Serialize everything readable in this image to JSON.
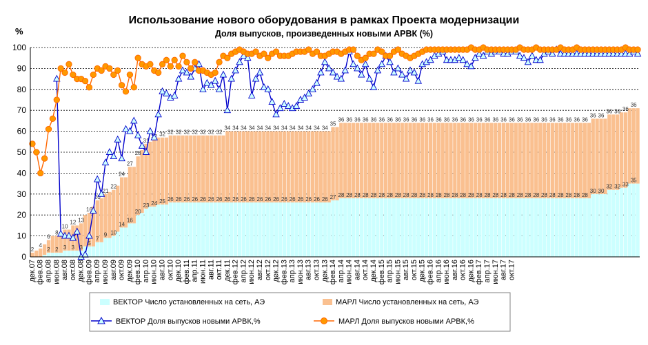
{
  "chart_data": {
    "type": "bar",
    "title": "Использование нового оборудования в рамках Проекта модернизации",
    "subtitle": "Доля выпусков, произведенных новыми АРВК (%)",
    "ylabel": "%",
    "xlabel": "",
    "ylim": [
      0,
      100
    ],
    "yticks": [
      "0",
      "10",
      "20",
      "30",
      "40",
      "50",
      "60",
      "70",
      "80",
      "90",
      "100"
    ],
    "grid": true,
    "legend_position": "bottom",
    "x_start": "2007-12",
    "x_end": "2017-12",
    "x_tick_labels": [
      "дек.07",
      "фев.08",
      "апр.08",
      "июн.08",
      "авг.08",
      "окт.08",
      "дек.08",
      "фев.09",
      "апр.09",
      "июн.09",
      "авг.09",
      "окт.09",
      "дек.09",
      "фев.10",
      "апр.10",
      "июн.10",
      "авг.10",
      "окт.10",
      "дек.10",
      "фев.11",
      "апр.11",
      "июн.11",
      "авг.11",
      "окт.11",
      "дек.11",
      "фев.12",
      "апр.12",
      "июн.12",
      "авг.12",
      "окт.12",
      "дек.12",
      "фев.13",
      "апр.13",
      "июн.13",
      "авг.13",
      "окт.13",
      "дек.13",
      "фев.14",
      "апр.14",
      "июн.14",
      "авг.14",
      "окт.14",
      "дек.14",
      "фев.15",
      "апр.15",
      "июн.15",
      "авг.15",
      "окт.15",
      "дек.15",
      "фев.16",
      "апр.16",
      "июн.16",
      "авг.16",
      "окт.16",
      "дек.16",
      "фев.17",
      "апр.17",
      "июн.17",
      "авг.17",
      "окт.17"
    ],
    "series": [
      {
        "name": "ВЕКТОР Число установленных на сеть, АЭ",
        "kind": "bar",
        "color": "#ccffff",
        "values": [
          0,
          0,
          0,
          1,
          2,
          2,
          2,
          2,
          3,
          3,
          3,
          3,
          3,
          5,
          5,
          5,
          7,
          7,
          9,
          9,
          10,
          12,
          14,
          14,
          16,
          16,
          20,
          21,
          23,
          24,
          24,
          25,
          25,
          25,
          26,
          26,
          26,
          26,
          26,
          26,
          26,
          26,
          26,
          26,
          26,
          26,
          26,
          26,
          26,
          26,
          26,
          26,
          26,
          26,
          26,
          26,
          26,
          26,
          26,
          26,
          26,
          26,
          26,
          26,
          26,
          26,
          26,
          26,
          26,
          26,
          26,
          26,
          26,
          26,
          27,
          27,
          28,
          28,
          28,
          28,
          28,
          28,
          28,
          28,
          28,
          28,
          28,
          28,
          28,
          28,
          28,
          28,
          28,
          28,
          28,
          28,
          28,
          28,
          28,
          28,
          28,
          28,
          28,
          28,
          28,
          28,
          28,
          28,
          28,
          28,
          28,
          28,
          28,
          28,
          28,
          28,
          28,
          28,
          28,
          28,
          28,
          28,
          28,
          28,
          28,
          28,
          28,
          28,
          28,
          28,
          28,
          28,
          28,
          28,
          28,
          28,
          28,
          28,
          30,
          30,
          30,
          30,
          32,
          32,
          32,
          33,
          33,
          35,
          35,
          35
        ]
      },
      {
        "name": "МАРЛ Число установленных на сеть, АЭ",
        "kind": "bar",
        "color": "#fac090",
        "values": [
          2,
          3,
          4,
          5,
          6,
          8,
          8,
          8,
          10,
          10,
          12,
          12,
          13,
          15,
          16,
          19,
          20,
          21,
          21,
          22,
          22,
          22,
          24,
          24,
          27,
          27,
          28,
          30,
          31,
          31,
          32,
          32,
          32,
          32,
          32,
          32,
          32,
          32,
          32,
          32,
          32,
          32,
          32,
          32,
          32,
          32,
          32,
          32,
          34,
          34,
          34,
          34,
          34,
          34,
          34,
          34,
          34,
          34,
          34,
          34,
          34,
          34,
          34,
          34,
          34,
          34,
          34,
          34,
          34,
          34,
          34,
          34,
          34,
          34,
          35,
          35,
          36,
          36,
          36,
          36,
          36,
          36,
          36,
          36,
          36,
          36,
          36,
          36,
          36,
          36,
          36,
          36,
          36,
          36,
          36,
          36,
          36,
          36,
          36,
          36,
          36,
          36,
          36,
          36,
          36,
          36,
          36,
          36,
          36,
          36,
          36,
          36,
          36,
          36,
          36,
          36,
          36,
          36,
          36,
          36,
          36,
          36,
          36,
          36,
          36,
          36,
          36,
          36,
          36,
          36,
          36,
          36,
          36,
          36,
          36,
          36,
          36,
          36,
          36,
          36,
          36,
          36,
          36,
          36,
          36,
          36,
          36,
          36,
          36,
          36
        ]
      },
      {
        "name": "ВЕКТОР Доля выпусков новыми АРВК,%",
        "kind": "line",
        "color": "#0000cc",
        "marker": "triangle",
        "values": [
          null,
          null,
          null,
          null,
          null,
          null,
          85,
          11,
          10,
          10,
          9,
          12,
          0,
          1,
          10,
          22,
          37,
          30,
          45,
          50,
          48,
          56,
          47,
          61,
          60,
          65,
          58,
          53,
          50,
          60,
          57,
          68,
          79,
          78,
          76,
          77,
          85,
          89,
          88,
          86,
          90,
          92,
          80,
          83,
          82,
          84,
          80,
          87,
          70,
          85,
          89,
          93,
          96,
          95,
          77,
          85,
          88,
          81,
          80,
          74,
          68,
          71,
          73,
          72,
          71,
          72,
          75,
          76,
          78,
          80,
          83,
          88,
          93,
          90,
          88,
          86,
          85,
          89,
          98,
          92,
          90,
          87,
          92,
          85,
          81,
          89,
          92,
          96,
          93,
          88,
          90,
          87,
          85,
          89,
          88,
          84,
          92,
          93,
          94,
          96,
          97,
          98,
          94,
          94,
          94,
          95,
          94,
          92,
          91,
          95,
          97,
          96,
          98,
          97,
          98,
          98,
          97,
          97,
          98,
          98,
          96,
          95,
          93,
          96,
          94,
          94,
          97,
          98,
          97,
          99,
          97,
          97,
          97,
          97,
          97,
          97,
          97,
          97,
          97,
          97,
          97,
          97,
          97,
          97,
          97,
          97,
          97,
          97,
          98,
          97
        ]
      },
      {
        "name": "МАРЛ Доля выпусков новыми АРВК,%",
        "kind": "line",
        "color": "#ff6600",
        "marker": "circle",
        "values": [
          54,
          50,
          40,
          47,
          61,
          66,
          75,
          90,
          88,
          92,
          87,
          85,
          85,
          84,
          81,
          87,
          90,
          89,
          91,
          90,
          87,
          89,
          82,
          79,
          87,
          81,
          95,
          92,
          91,
          92,
          89,
          88,
          92,
          94,
          91,
          94,
          91,
          96,
          93,
          90,
          93,
          89,
          89,
          88,
          87,
          88,
          93,
          96,
          95,
          97,
          98,
          99,
          98,
          97,
          97,
          98,
          96,
          97,
          95,
          97,
          98,
          96,
          96,
          96,
          97,
          98,
          98,
          98,
          99,
          97,
          98,
          96,
          96,
          97,
          98,
          98,
          97,
          98,
          99,
          99,
          96,
          94,
          95,
          97,
          97,
          99,
          98,
          96,
          96,
          98,
          99,
          97,
          96,
          95,
          96,
          97,
          98,
          99,
          99,
          99,
          99,
          99,
          99,
          99,
          99,
          99,
          99,
          99,
          100,
          99,
          99,
          100,
          99,
          99,
          99,
          99,
          99,
          99,
          99,
          99,
          100,
          99,
          99,
          99,
          100,
          99,
          99,
          99,
          99,
          99,
          100,
          99,
          99,
          99,
          100,
          99,
          99,
          99,
          99,
          99,
          99,
          99,
          99,
          99,
          99,
          99,
          100,
          99,
          99,
          99
        ]
      }
    ],
    "annotations": [
      "Числовые подписи над столбцами ВЕКТОР и МАРЛ (2, 3, 4, 5, 8, 10, 12, 15, 22, 24, 26, 28, 30, 32, 34, 35, 36)"
    ]
  }
}
